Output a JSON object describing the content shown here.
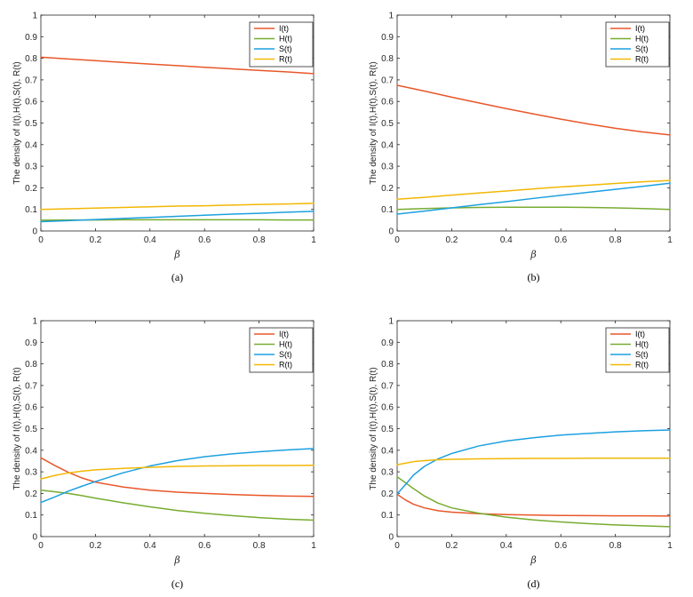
{
  "colors": {
    "I": "#e8572a",
    "H": "#77ac30",
    "S": "#1ca0e0",
    "R": "#f2b705"
  },
  "chart_data": [
    {
      "type": "line",
      "caption": "(a)",
      "xlabel": "β",
      "ylabel": "The density of I(t),H(t),S(t), R(t)",
      "xlim": [
        0,
        1
      ],
      "ylim": [
        0,
        1
      ],
      "xticks": [
        "0",
        "0.2",
        "0.4",
        "0.6",
        "0.8",
        "1"
      ],
      "yticks": [
        "0",
        "0.1",
        "0.2",
        "0.3",
        "0.4",
        "0.5",
        "0.6",
        "0.7",
        "0.8",
        "0.9",
        "1"
      ],
      "legend": "top-right",
      "x": [
        0,
        0.1,
        0.2,
        0.3,
        0.4,
        0.5,
        0.6,
        0.7,
        0.8,
        0.9,
        1.0
      ],
      "series": [
        {
          "name": "I(t)",
          "color_key": "I",
          "values": [
            0.805,
            0.797,
            0.789,
            0.781,
            0.773,
            0.766,
            0.758,
            0.751,
            0.744,
            0.737,
            0.729
          ]
        },
        {
          "name": "H(t)",
          "color_key": "H",
          "values": [
            0.05,
            0.051,
            0.051,
            0.052,
            0.052,
            0.052,
            0.052,
            0.052,
            0.052,
            0.051,
            0.051
          ]
        },
        {
          "name": "S(t)",
          "color_key": "S",
          "values": [
            0.043,
            0.048,
            0.053,
            0.058,
            0.063,
            0.068,
            0.073,
            0.078,
            0.082,
            0.087,
            0.091
          ]
        },
        {
          "name": "R(t)",
          "color_key": "R",
          "values": [
            0.1,
            0.103,
            0.106,
            0.109,
            0.112,
            0.115,
            0.117,
            0.12,
            0.123,
            0.125,
            0.128
          ]
        }
      ]
    },
    {
      "type": "line",
      "caption": "(b)",
      "xlabel": "β",
      "ylabel": "The density of I(t),H(t),S(t), R(t)",
      "xlim": [
        0,
        1
      ],
      "ylim": [
        0,
        1
      ],
      "xticks": [
        "0",
        "0.2",
        "0.4",
        "0.6",
        "0.8",
        "1"
      ],
      "yticks": [
        "0",
        "0.1",
        "0.2",
        "0.3",
        "0.4",
        "0.5",
        "0.6",
        "0.7",
        "0.8",
        "0.9",
        "1"
      ],
      "legend": "top-right",
      "x": [
        0,
        0.1,
        0.2,
        0.3,
        0.4,
        0.5,
        0.6,
        0.7,
        0.8,
        0.9,
        1.0
      ],
      "series": [
        {
          "name": "I(t)",
          "color_key": "I",
          "values": [
            0.675,
            0.648,
            0.62,
            0.593,
            0.567,
            0.542,
            0.518,
            0.496,
            0.476,
            0.459,
            0.445
          ]
        },
        {
          "name": "H(t)",
          "color_key": "H",
          "values": [
            0.1,
            0.104,
            0.107,
            0.109,
            0.11,
            0.11,
            0.11,
            0.109,
            0.107,
            0.104,
            0.1
          ]
        },
        {
          "name": "S(t)",
          "color_key": "S",
          "values": [
            0.078,
            0.092,
            0.107,
            0.122,
            0.136,
            0.151,
            0.165,
            0.179,
            0.193,
            0.207,
            0.221
          ]
        },
        {
          "name": "R(t)",
          "color_key": "R",
          "values": [
            0.147,
            0.156,
            0.166,
            0.176,
            0.185,
            0.195,
            0.204,
            0.212,
            0.22,
            0.228,
            0.234
          ]
        }
      ]
    },
    {
      "type": "line",
      "caption": "(c)",
      "xlabel": "β",
      "ylabel": "The density of I(t),H(t),S(t), R(t)",
      "xlim": [
        0,
        1
      ],
      "ylim": [
        0,
        1
      ],
      "xticks": [
        "0",
        "0.2",
        "0.4",
        "0.6",
        "0.8",
        "1"
      ],
      "yticks": [
        "0",
        "0.1",
        "0.2",
        "0.3",
        "0.4",
        "0.5",
        "0.6",
        "0.7",
        "0.8",
        "0.9",
        "1"
      ],
      "legend": "top-right",
      "x": [
        0,
        0.05,
        0.1,
        0.15,
        0.2,
        0.3,
        0.4,
        0.5,
        0.6,
        0.7,
        0.8,
        0.9,
        1.0
      ],
      "series": [
        {
          "name": "I(t)",
          "color_key": "I",
          "values": [
            0.365,
            0.33,
            0.298,
            0.272,
            0.252,
            0.23,
            0.215,
            0.206,
            0.2,
            0.195,
            0.191,
            0.188,
            0.186
          ]
        },
        {
          "name": "H(t)",
          "color_key": "H",
          "values": [
            0.215,
            0.208,
            0.2,
            0.19,
            0.178,
            0.157,
            0.138,
            0.121,
            0.108,
            0.097,
            0.088,
            0.081,
            0.076
          ]
        },
        {
          "name": "S(t)",
          "color_key": "S",
          "values": [
            0.158,
            0.183,
            0.21,
            0.233,
            0.255,
            0.295,
            0.327,
            0.352,
            0.37,
            0.383,
            0.393,
            0.401,
            0.408
          ]
        },
        {
          "name": "R(t)",
          "color_key": "R",
          "values": [
            0.267,
            0.283,
            0.295,
            0.303,
            0.309,
            0.316,
            0.321,
            0.325,
            0.327,
            0.328,
            0.329,
            0.329,
            0.33
          ]
        }
      ]
    },
    {
      "type": "line",
      "caption": "(d)",
      "xlabel": "β",
      "ylabel": "The density of I(t),H(t),S(t), R(t)",
      "xlim": [
        0,
        1
      ],
      "ylim": [
        0,
        1
      ],
      "xticks": [
        "0",
        "0.2",
        "0.4",
        "0.6",
        "0.8",
        "1"
      ],
      "yticks": [
        "0",
        "0.1",
        "0.2",
        "0.3",
        "0.4",
        "0.5",
        "0.6",
        "0.7",
        "0.8",
        "0.9",
        "1"
      ],
      "legend": "top-right",
      "x": [
        0,
        0.03,
        0.06,
        0.1,
        0.15,
        0.2,
        0.3,
        0.4,
        0.5,
        0.6,
        0.7,
        0.8,
        0.9,
        1.0
      ],
      "series": [
        {
          "name": "I(t)",
          "color_key": "I",
          "values": [
            0.196,
            0.17,
            0.15,
            0.133,
            0.12,
            0.113,
            0.106,
            0.102,
            0.1,
            0.098,
            0.097,
            0.096,
            0.096,
            0.095
          ]
        },
        {
          "name": "H(t)",
          "color_key": "H",
          "values": [
            0.277,
            0.25,
            0.222,
            0.188,
            0.155,
            0.133,
            0.108,
            0.09,
            0.077,
            0.068,
            0.06,
            0.054,
            0.05,
            0.046
          ]
        },
        {
          "name": "S(t)",
          "color_key": "S",
          "values": [
            0.197,
            0.24,
            0.285,
            0.325,
            0.36,
            0.385,
            0.42,
            0.443,
            0.458,
            0.47,
            0.478,
            0.485,
            0.49,
            0.494
          ]
        },
        {
          "name": "R(t)",
          "color_key": "R",
          "values": [
            0.333,
            0.34,
            0.347,
            0.352,
            0.356,
            0.358,
            0.36,
            0.361,
            0.362,
            0.362,
            0.363,
            0.363,
            0.363,
            0.363
          ]
        }
      ]
    }
  ]
}
